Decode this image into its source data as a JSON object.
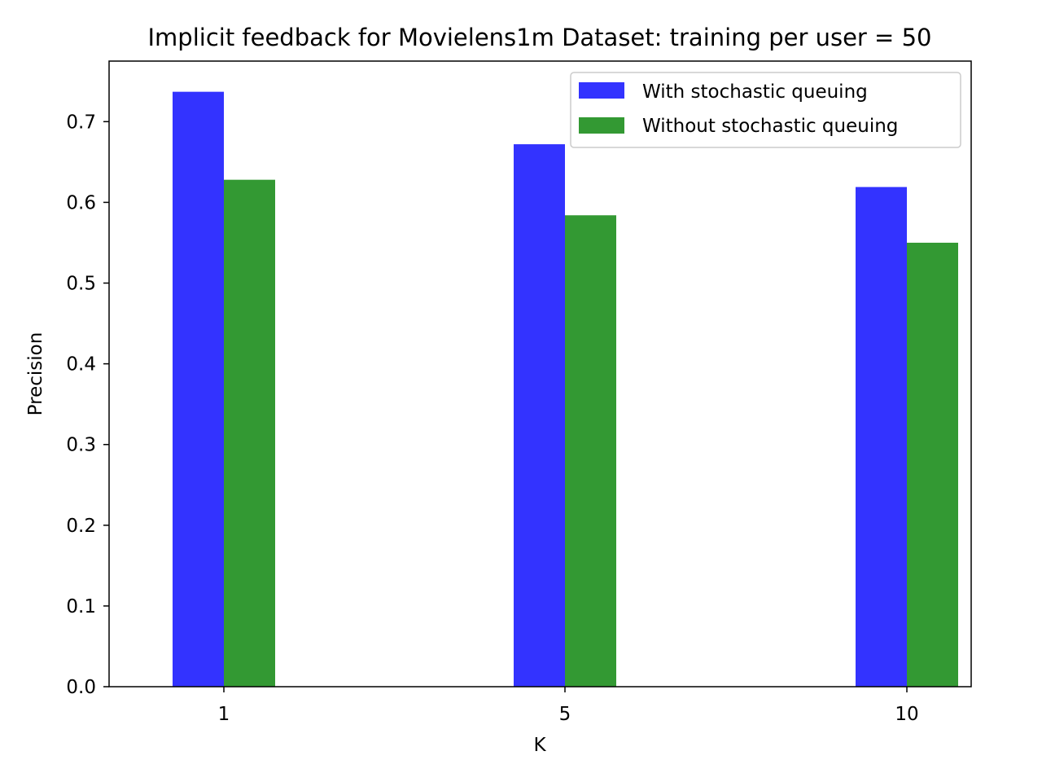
{
  "chart_data": {
    "type": "bar",
    "title": "Implicit feedback for Movielens1m Dataset: training per user = 50",
    "xlabel": "K",
    "ylabel": "Precision",
    "categories": [
      "1",
      "5",
      "10"
    ],
    "series": [
      {
        "name": "With stochastic queuing",
        "values": [
          0.737,
          0.672,
          0.619
        ],
        "color": "#3333ff"
      },
      {
        "name": "Without stochastic queuing",
        "values": [
          0.628,
          0.584,
          0.55
        ],
        "color": "#339933"
      }
    ],
    "ylim": [
      0,
      0.775
    ],
    "yticks": [
      "0.0",
      "0.1",
      "0.2",
      "0.3",
      "0.4",
      "0.5",
      "0.6",
      "0.7"
    ],
    "grid": false,
    "legend_position": "top-right"
  }
}
